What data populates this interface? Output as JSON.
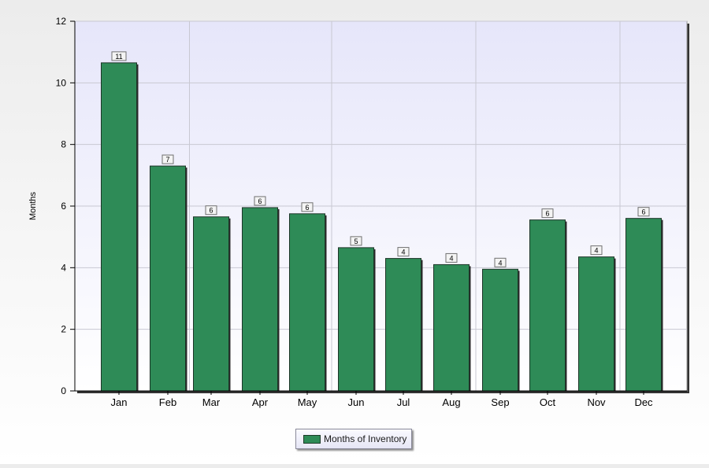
{
  "chart_data": {
    "type": "bar",
    "title": "",
    "xlabel": "",
    "ylabel": "Months",
    "ylim": [
      0,
      12
    ],
    "yticks": [
      0,
      2,
      4,
      6,
      8,
      10,
      12
    ],
    "grid": true,
    "legend_position": "bottom-center",
    "categories": [
      "Jan",
      "Feb",
      "Mar",
      "Apr",
      "May",
      "Jun",
      "Jul",
      "Aug",
      "Sep",
      "Oct",
      "Nov",
      "Dec"
    ],
    "series": [
      {
        "name": "Months of Inventory",
        "color": "#2e8b57",
        "values": [
          10.65,
          7.3,
          5.65,
          5.95,
          5.75,
          4.65,
          4.3,
          4.1,
          3.95,
          5.55,
          4.35,
          5.6
        ],
        "data_labels": [
          "11",
          "7",
          "6",
          "6",
          "6",
          "5",
          "4",
          "4",
          "4",
          "6",
          "4",
          "6"
        ]
      }
    ]
  },
  "legend": {
    "label": "Months of Inventory"
  }
}
